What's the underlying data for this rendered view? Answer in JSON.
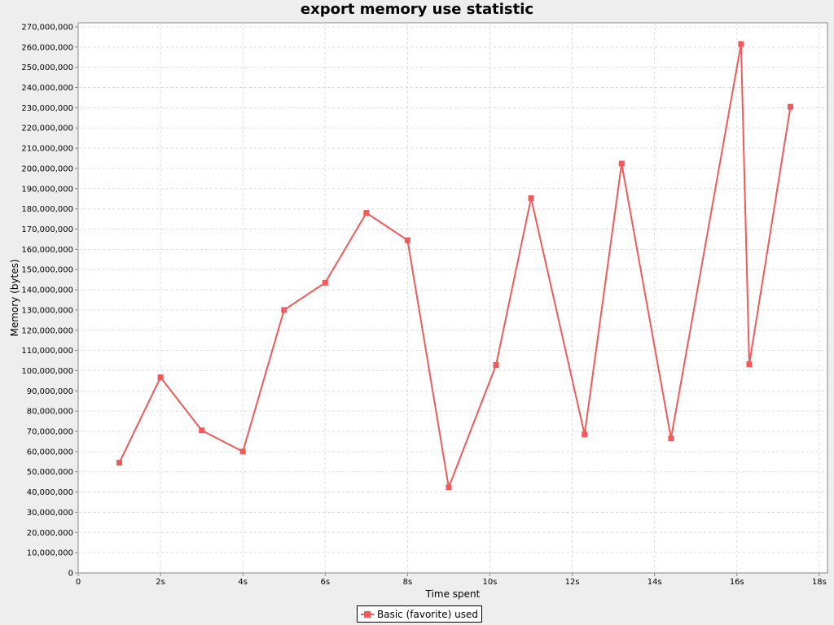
{
  "chart_data": {
    "type": "line",
    "title": "export memory use statistic",
    "xlabel": "Time spent",
    "ylabel": "Memory (bytes)",
    "xlim": [
      0,
      18.2
    ],
    "ylim": [
      0,
      272000000
    ],
    "x_ticks": [
      {
        "value": 0,
        "label": "0"
      },
      {
        "value": 2,
        "label": "2s"
      },
      {
        "value": 4,
        "label": "4s"
      },
      {
        "value": 6,
        "label": "6s"
      },
      {
        "value": 8,
        "label": "8s"
      },
      {
        "value": 10,
        "label": "10s"
      },
      {
        "value": 12,
        "label": "12s"
      },
      {
        "value": 14,
        "label": "14s"
      },
      {
        "value": 16,
        "label": "16s"
      },
      {
        "value": 18,
        "label": "18s"
      }
    ],
    "y_ticks": [
      {
        "value": 0,
        "label": "0"
      },
      {
        "value": 10000000,
        "label": "10,000,000"
      },
      {
        "value": 20000000,
        "label": "20,000,000"
      },
      {
        "value": 30000000,
        "label": "30,000,000"
      },
      {
        "value": 40000000,
        "label": "40,000,000"
      },
      {
        "value": 50000000,
        "label": "50,000,000"
      },
      {
        "value": 60000000,
        "label": "60,000,000"
      },
      {
        "value": 70000000,
        "label": "70,000,000"
      },
      {
        "value": 80000000,
        "label": "80,000,000"
      },
      {
        "value": 90000000,
        "label": "90,000,000"
      },
      {
        "value": 100000000,
        "label": "100,000,000"
      },
      {
        "value": 110000000,
        "label": "110,000,000"
      },
      {
        "value": 120000000,
        "label": "120,000,000"
      },
      {
        "value": 130000000,
        "label": "130,000,000"
      },
      {
        "value": 140000000,
        "label": "140,000,000"
      },
      {
        "value": 150000000,
        "label": "150,000,000"
      },
      {
        "value": 160000000,
        "label": "160,000,000"
      },
      {
        "value": 170000000,
        "label": "170,000,000"
      },
      {
        "value": 180000000,
        "label": "180,000,000"
      },
      {
        "value": 190000000,
        "label": "190,000,000"
      },
      {
        "value": 200000000,
        "label": "200,000,000"
      },
      {
        "value": 210000000,
        "label": "210,000,000"
      },
      {
        "value": 220000000,
        "label": "220,000,000"
      },
      {
        "value": 230000000,
        "label": "230,000,000"
      },
      {
        "value": 240000000,
        "label": "240,000,000"
      },
      {
        "value": 250000000,
        "label": "250,000,000"
      },
      {
        "value": 260000000,
        "label": "260,000,000"
      },
      {
        "value": 270000000,
        "label": "270,000,000"
      }
    ],
    "grid": true,
    "legend_position": "bottom-center",
    "series": [
      {
        "name": "Basic (favorite) used",
        "color": "#f15a5a",
        "marker": "square",
        "points": [
          {
            "x": 1.0,
            "y": 54500000
          },
          {
            "x": 2.0,
            "y": 96700000
          },
          {
            "x": 3.0,
            "y": 70500000
          },
          {
            "x": 4.0,
            "y": 60000000
          },
          {
            "x": 5.0,
            "y": 130000000
          },
          {
            "x": 6.0,
            "y": 143500000
          },
          {
            "x": 7.0,
            "y": 178000000
          },
          {
            "x": 8.0,
            "y": 164500000
          },
          {
            "x": 9.0,
            "y": 42300000
          },
          {
            "x": 10.15,
            "y": 102800000
          },
          {
            "x": 11.0,
            "y": 185300000
          },
          {
            "x": 12.3,
            "y": 68500000
          },
          {
            "x": 13.2,
            "y": 202400000
          },
          {
            "x": 14.4,
            "y": 66500000
          },
          {
            "x": 16.1,
            "y": 261500000
          },
          {
            "x": 16.3,
            "y": 103200000
          },
          {
            "x": 17.3,
            "y": 230500000
          }
        ]
      }
    ]
  }
}
